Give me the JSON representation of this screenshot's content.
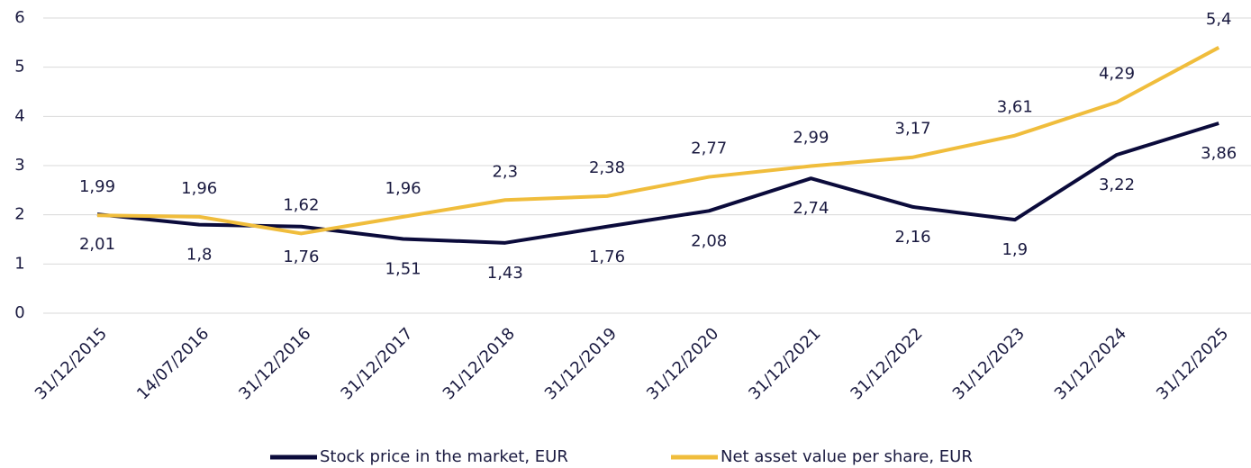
{
  "chart_data": {
    "type": "line",
    "categories": [
      "31/12/2015",
      "14/07/2016",
      "31/12/2016",
      "31/12/2017",
      "31/12/2018",
      "31/12/2019",
      "31/12/2020",
      "31/12/2021",
      "31/12/2022",
      "31/12/2023",
      "31/12/2024",
      "31/12/2025"
    ],
    "series": [
      {
        "name": "Stock price in the market, EUR",
        "color": "#0b0b3b",
        "values": [
          2.01,
          1.8,
          1.76,
          1.51,
          1.43,
          1.76,
          2.08,
          2.74,
          2.16,
          1.9,
          3.22,
          3.86
        ],
        "value_labels": [
          "2,01",
          "1,8",
          "1,76",
          "1,51",
          "1,43",
          "1,76",
          "2,08",
          "2,74",
          "2,16",
          "1,9",
          "3,22",
          "3,86"
        ]
      },
      {
        "name": "Net asset value per share, EUR",
        "color": "#f0bd3c",
        "values": [
          1.99,
          1.96,
          1.62,
          1.96,
          2.3,
          2.38,
          2.77,
          2.99,
          3.17,
          3.61,
          4.29,
          5.4
        ],
        "value_labels": [
          "1,99",
          "1,96",
          "1,62",
          "1,96",
          "2,3",
          "2,38",
          "2,77",
          "2,99",
          "3,17",
          "3,61",
          "4,29",
          "5,4"
        ]
      }
    ],
    "ylim": [
      0,
      6
    ],
    "yticks": [
      0,
      1,
      2,
      3,
      4,
      5,
      6
    ],
    "grid": true,
    "legend": "bottom"
  }
}
